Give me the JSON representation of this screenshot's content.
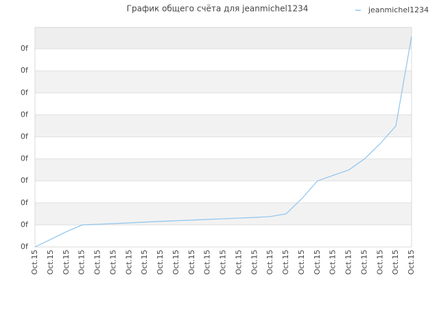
{
  "chart_data": {
    "type": "line",
    "title": "График общего счёта для jeanmichel1234",
    "categories": [
      "Oct.15",
      "Oct.15",
      "Oct.15",
      "Oct.15",
      "Oct.15",
      "Oct.15",
      "Oct.15",
      "Oct.15",
      "Oct.15",
      "Oct.15",
      "Oct.15",
      "Oct.15",
      "Oct.15",
      "Oct.15",
      "Oct.15",
      "Oct.15",
      "Oct.15",
      "Oct.15",
      "Oct.15",
      "Oct.15",
      "Oct.15",
      "Oct.15",
      "Oct.15",
      "Oct.15",
      "Oct.15"
    ],
    "series": [
      {
        "name": "jeanmichel1234",
        "color": "#8ec4ee",
        "values": [
          0,
          0.34,
          0.69,
          1.0,
          1.03,
          1.06,
          1.09,
          1.13,
          1.16,
          1.19,
          1.22,
          1.25,
          1.28,
          1.31,
          1.34,
          1.38,
          1.5,
          2.19,
          3.0,
          3.25,
          3.5,
          4.0,
          4.69,
          5.5,
          9.56
        ]
      }
    ],
    "ylim": [
      0,
      9.97
    ],
    "yticks": [
      {
        "value": 0,
        "label": "0f"
      },
      {
        "value": 1,
        "label": "0f"
      },
      {
        "value": 2,
        "label": "0f"
      },
      {
        "value": 3,
        "label": "0f"
      },
      {
        "value": 4,
        "label": "0f"
      },
      {
        "value": 5,
        "label": "0f"
      },
      {
        "value": 6,
        "label": "0f"
      },
      {
        "value": 7,
        "label": "0f"
      },
      {
        "value": 8,
        "label": "0f"
      },
      {
        "value": 9,
        "label": "0f"
      }
    ],
    "grid": true,
    "legend": "top-right"
  }
}
